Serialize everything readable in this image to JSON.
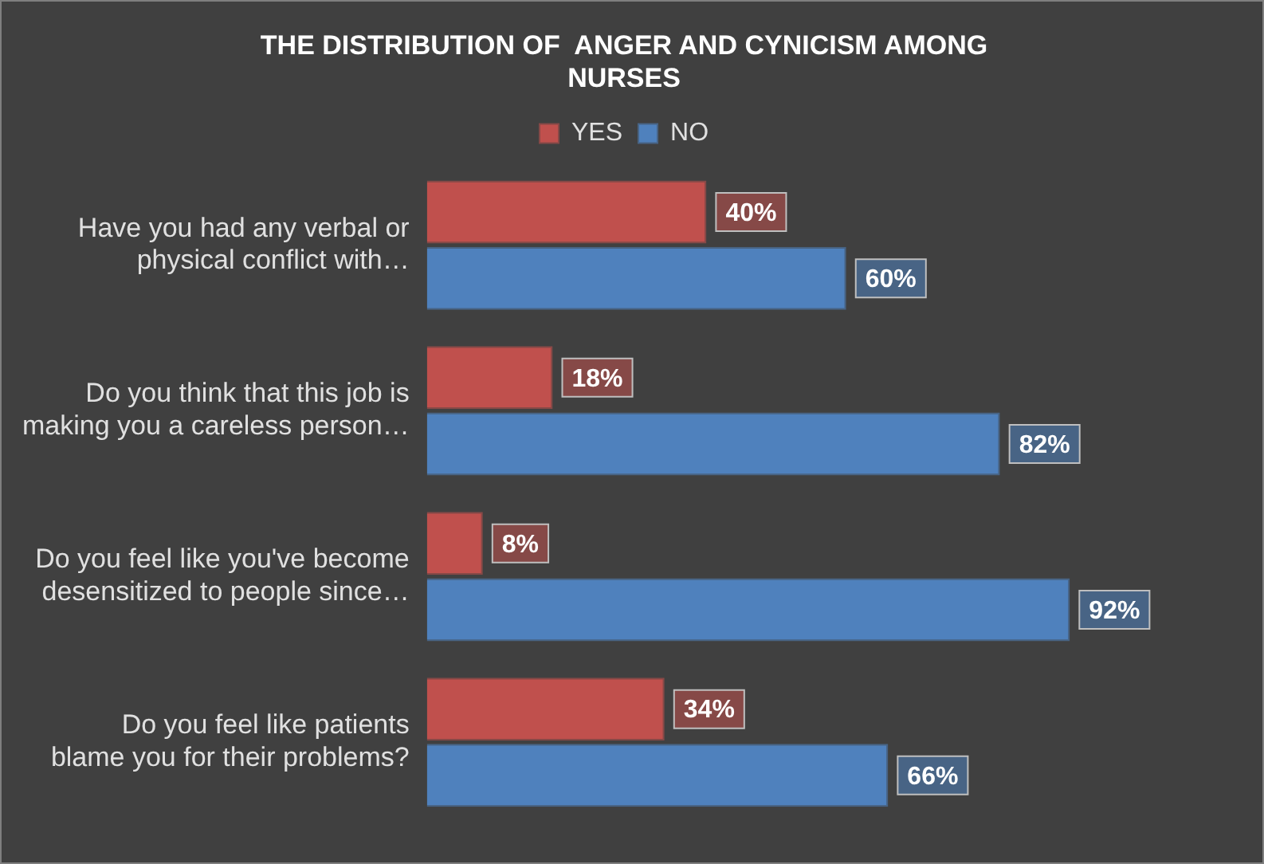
{
  "chart_data": {
    "type": "bar",
    "orientation": "horizontal",
    "title": "THE DISTRIBUTION OF  ANGER AND CYNICISM AMONG NURSES",
    "categories": [
      "Have you had any verbal or physical conflict with…",
      "Do you think that this job is making you a careless person…",
      "Do you feel like you've become desensitized to people since…",
      "Do you feel like patients blame you for their problems?"
    ],
    "series": [
      {
        "name": "YES",
        "color": "#c0504d",
        "values": [
          40,
          18,
          8,
          34
        ],
        "value_labels": [
          "40%",
          "18%",
          "8%",
          "34%"
        ]
      },
      {
        "name": "NO",
        "color": "#4f81bd",
        "values": [
          60,
          82,
          92,
          66
        ],
        "value_labels": [
          "60%",
          "82%",
          "92%",
          "66%"
        ]
      }
    ],
    "legend": "top"
  }
}
